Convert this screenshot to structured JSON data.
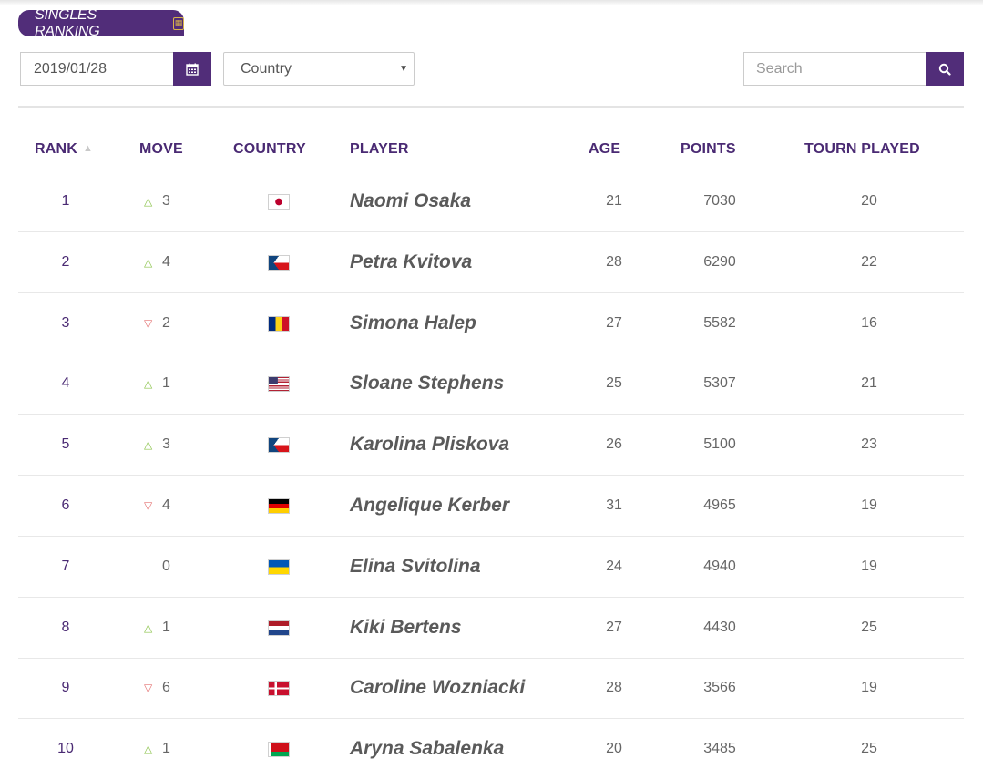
{
  "tab": {
    "label": "SINGLES RANKING",
    "icon": "calendar-badge-icon"
  },
  "filters": {
    "date_value": "2019/01/28",
    "date_button_icon": "calendar-icon",
    "country_value": "Country",
    "search_placeholder": "Search",
    "search_button_icon": "search-icon"
  },
  "colors": {
    "accent": "#512d79",
    "up": "#8bc34a",
    "down": "#e57373"
  },
  "columns": {
    "rank": "RANK",
    "move": "MOVE",
    "country": "COUNTRY",
    "player": "PLAYER",
    "age": "AGE",
    "points": "POINTS",
    "tourn": "TOURN PLAYED"
  },
  "rows": [
    {
      "rank": "1",
      "dir": "up",
      "move": "3",
      "flag": "JPN",
      "player": "Naomi Osaka",
      "age": "21",
      "points": "7030",
      "tourn": "20"
    },
    {
      "rank": "2",
      "dir": "up",
      "move": "4",
      "flag": "CZE",
      "player": "Petra Kvitova",
      "age": "28",
      "points": "6290",
      "tourn": "22"
    },
    {
      "rank": "3",
      "dir": "down",
      "move": "2",
      "flag": "ROU",
      "player": "Simona Halep",
      "age": "27",
      "points": "5582",
      "tourn": "16"
    },
    {
      "rank": "4",
      "dir": "up",
      "move": "1",
      "flag": "USA",
      "player": "Sloane Stephens",
      "age": "25",
      "points": "5307",
      "tourn": "21"
    },
    {
      "rank": "5",
      "dir": "up",
      "move": "3",
      "flag": "CZE",
      "player": "Karolina Pliskova",
      "age": "26",
      "points": "5100",
      "tourn": "23"
    },
    {
      "rank": "6",
      "dir": "down",
      "move": "4",
      "flag": "GER",
      "player": "Angelique Kerber",
      "age": "31",
      "points": "4965",
      "tourn": "19"
    },
    {
      "rank": "7",
      "dir": "none",
      "move": "0",
      "flag": "UKR",
      "player": "Elina Svitolina",
      "age": "24",
      "points": "4940",
      "tourn": "19"
    },
    {
      "rank": "8",
      "dir": "up",
      "move": "1",
      "flag": "NED",
      "player": "Kiki Bertens",
      "age": "27",
      "points": "4430",
      "tourn": "25"
    },
    {
      "rank": "9",
      "dir": "down",
      "move": "6",
      "flag": "DEN",
      "player": "Caroline Wozniacki",
      "age": "28",
      "points": "3566",
      "tourn": "19"
    },
    {
      "rank": "10",
      "dir": "up",
      "move": "1",
      "flag": "BLR",
      "player": "Aryna Sabalenka",
      "age": "20",
      "points": "3485",
      "tourn": "25"
    }
  ]
}
